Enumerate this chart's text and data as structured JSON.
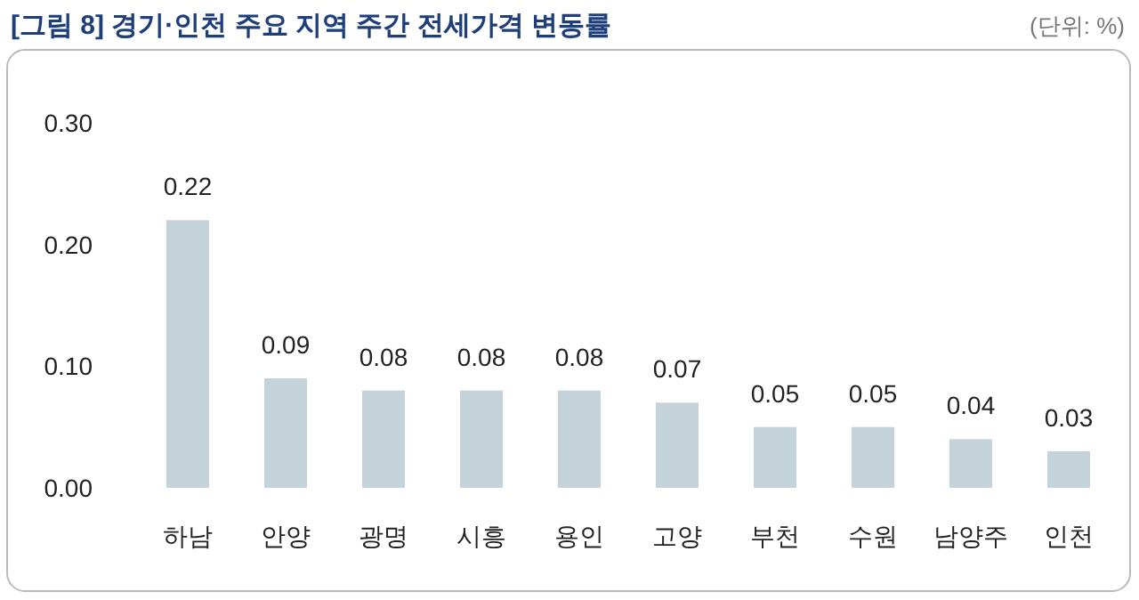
{
  "chart_data": {
    "type": "bar",
    "title": "[그림 8] 경기·인천 주요 지역 주간 전세가격 변동률",
    "annotations": [
      "(단위: %)"
    ],
    "categories": [
      "하남",
      "안양",
      "광명",
      "시흥",
      "용인",
      "고양",
      "부천",
      "수원",
      "남양주",
      "인천"
    ],
    "values": [
      0.22,
      0.09,
      0.08,
      0.08,
      0.08,
      0.07,
      0.05,
      0.05,
      0.04,
      0.03
    ],
    "color": "#c3d3d9",
    "ylim": [
      0,
      0.3
    ],
    "yticks": [
      {
        "value": 0,
        "label": "0.00"
      },
      {
        "value": 0.1,
        "label": "0.10"
      },
      {
        "value": 0.2,
        "label": "0.20"
      },
      {
        "value": 0.3,
        "label": "0.30"
      }
    ],
    "data_labels": true,
    "grid": false
  }
}
